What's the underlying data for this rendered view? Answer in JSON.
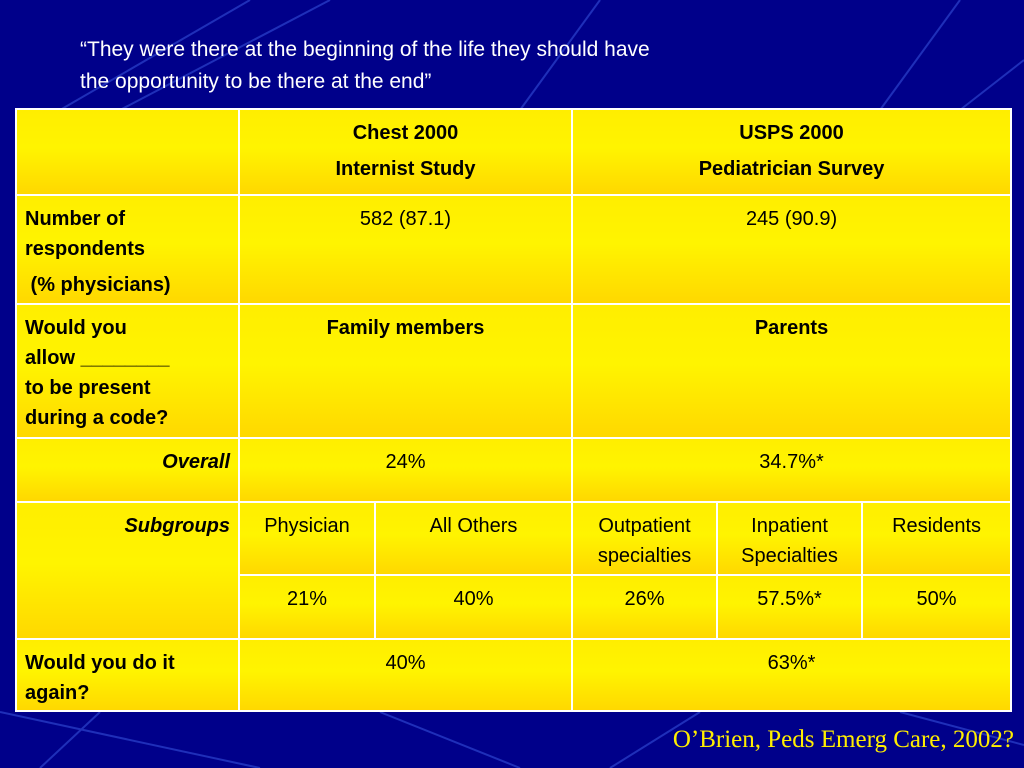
{
  "quote": {
    "line1": "“They were there at the beginning of the life they should have",
    "line2": "the opportunity to be there at the end”"
  },
  "table": {
    "header": {
      "col1_line1": "Chest 2000",
      "col1_line2": "Internist Study",
      "col2_line1": "USPS 2000",
      "col2_line2": "Pediatrician Survey"
    },
    "respondents": {
      "label_line1": "Number of",
      "label_line2": "respondents",
      "label_line3": " (% physicians)",
      "chest": "582 (87.1)",
      "usps": "245 (90.9)"
    },
    "allow": {
      "label_line1": "Would you",
      "label_line2": "allow ________",
      "label_line3": "to be present",
      "label_line4": "during a code?",
      "chest": "Family members",
      "usps": "Parents"
    },
    "overall": {
      "label": "Overall",
      "chest": "24%",
      "usps": "34.7%*"
    },
    "subgroups": {
      "label": "Subgroups",
      "physician": "Physician",
      "all_others": "All Others",
      "outpatient_line1": "Outpatient",
      "outpatient_line2": "specialties",
      "inpatient_line1": "Inpatient",
      "inpatient_line2": "Specialties",
      "residents": "Residents",
      "values": [
        "21%",
        "40%",
        "26%",
        "57.5%*",
        "50%"
      ]
    },
    "again": {
      "label_line1": "Would you do it",
      "label_line2": "again?",
      "chest": "40%",
      "usps": "63%*"
    }
  },
  "citation": "O’Brien, Peds Emerg Care, 2002?"
}
